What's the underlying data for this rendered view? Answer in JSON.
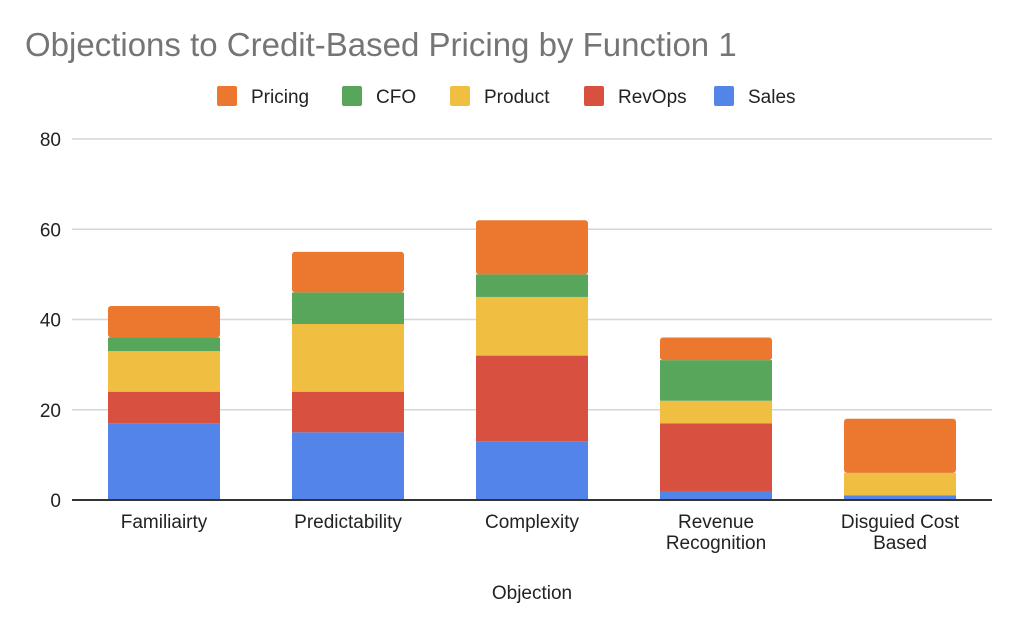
{
  "chart_data": {
    "type": "bar",
    "stacked": true,
    "title": "Objections to Credit-Based Pricing by Function 1",
    "xlabel": "Objection",
    "ylabel": "",
    "ylim": [
      0,
      80
    ],
    "yticks": [
      0,
      20,
      40,
      60,
      80
    ],
    "grid": true,
    "legend_position": "top",
    "categories": [
      [
        "Familiairty"
      ],
      [
        "Predictability"
      ],
      [
        "Complexity"
      ],
      [
        "Revenue",
        "Recognition"
      ],
      [
        "Disguied Cost",
        "Based"
      ]
    ],
    "series": [
      {
        "name": "Sales",
        "color": "#5385E8",
        "values": [
          17,
          15,
          13,
          2,
          1
        ]
      },
      {
        "name": "RevOps",
        "color": "#D85140",
        "values": [
          7,
          9,
          19,
          15,
          0
        ]
      },
      {
        "name": "Product",
        "color": "#F0BE41",
        "values": [
          9,
          15,
          13,
          5,
          5
        ]
      },
      {
        "name": "CFO",
        "color": "#58A65C",
        "values": [
          3,
          7,
          5,
          9,
          0
        ]
      },
      {
        "name": "Pricing",
        "color": "#EC772E",
        "values": [
          7,
          9,
          12,
          5,
          12
        ]
      }
    ],
    "legend_order": [
      "Pricing",
      "CFO",
      "Product",
      "RevOps",
      "Sales"
    ]
  }
}
